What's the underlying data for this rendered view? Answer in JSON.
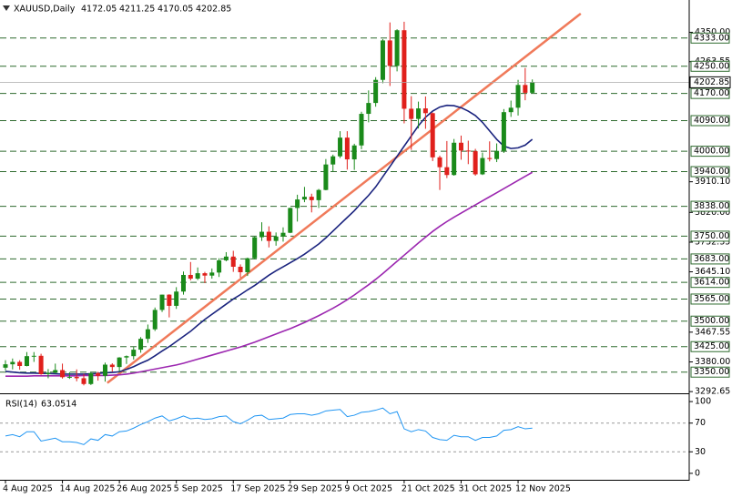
{
  "header": {
    "symbol": "XAUUSD,Daily"
  },
  "chart_data": {
    "type": "candlestick",
    "categories": [
      "4 Aug 2025",
      null,
      null,
      null,
      null,
      null,
      null,
      null,
      "14 Aug 2025",
      null,
      null,
      null,
      null,
      null,
      null,
      null,
      "26 Aug 2025",
      null,
      null,
      null,
      null,
      null,
      null,
      null,
      "5 Sep 2025",
      null,
      null,
      null,
      null,
      null,
      null,
      null,
      "17 Sep 2025",
      null,
      null,
      null,
      null,
      null,
      null,
      null,
      "29 Sep 2025",
      null,
      null,
      null,
      null,
      null,
      null,
      null,
      "9 Oct 2025",
      null,
      null,
      null,
      null,
      null,
      null,
      null,
      "21 Oct 2025",
      null,
      null,
      null,
      null,
      null,
      null,
      null,
      "31 Oct 2025",
      null,
      null,
      null,
      null,
      null,
      null,
      null,
      "12 Nov 2025",
      null,
      null
    ],
    "candles": [
      [
        3363,
        3385,
        3355,
        3373
      ],
      [
        3373,
        3390,
        3358,
        3380
      ],
      [
        3380,
        3385,
        3357,
        3368
      ],
      [
        3368,
        3409,
        3367,
        3397
      ],
      [
        3397,
        3409,
        3380,
        3398
      ],
      [
        3398,
        3404,
        3342,
        3344
      ],
      [
        3344,
        3359,
        3332,
        3348
      ],
      [
        3348,
        3375,
        3346,
        3356
      ],
      [
        3356,
        3375,
        3331,
        3335
      ],
      [
        3335,
        3350,
        3330,
        3336
      ],
      [
        3336,
        3358,
        3323,
        3332
      ],
      [
        3332,
        3345,
        3311,
        3315
      ],
      [
        3315,
        3350,
        3312,
        3347
      ],
      [
        3347,
        3351,
        3325,
        3339
      ],
      [
        3339,
        3378,
        3322,
        3372
      ],
      [
        3372,
        3376,
        3351,
        3365
      ],
      [
        3365,
        3394,
        3351,
        3393
      ],
      [
        3393,
        3399,
        3374,
        3397
      ],
      [
        3397,
        3424,
        3387,
        3416
      ],
      [
        3416,
        3453,
        3407,
        3448
      ],
      [
        3448,
        3490,
        3436,
        3476
      ],
      [
        3476,
        3540,
        3471,
        3533
      ],
      [
        3533,
        3578,
        3527,
        3578
      ],
      [
        3578,
        3579,
        3511,
        3545
      ],
      [
        3545,
        3600,
        3536,
        3587
      ],
      [
        3587,
        3646,
        3578,
        3636
      ],
      [
        3636,
        3674,
        3620,
        3625
      ],
      [
        3625,
        3658,
        3621,
        3641
      ],
      [
        3641,
        3645,
        3612,
        3634
      ],
      [
        3634,
        3655,
        3625,
        3643
      ],
      [
        3643,
        3685,
        3630,
        3679
      ],
      [
        3679,
        3703,
        3676,
        3690
      ],
      [
        3690,
        3707,
        3645,
        3660
      ],
      [
        3660,
        3667,
        3628,
        3644
      ],
      [
        3644,
        3687,
        3633,
        3685
      ],
      [
        3685,
        3749,
        3682,
        3747
      ],
      [
        3747,
        3791,
        3736,
        3763
      ],
      [
        3763,
        3779,
        3717,
        3736
      ],
      [
        3736,
        3761,
        3722,
        3749
      ],
      [
        3749,
        3776,
        3734,
        3760
      ],
      [
        3760,
        3834,
        3759,
        3833
      ],
      [
        3833,
        3872,
        3793,
        3858
      ],
      [
        3858,
        3895,
        3850,
        3866
      ],
      [
        3866,
        3875,
        3820,
        3856
      ],
      [
        3856,
        3889,
        3833,
        3886
      ],
      [
        3886,
        3977,
        3885,
        3961
      ],
      [
        3961,
        3990,
        3940,
        3985
      ],
      [
        3985,
        4059,
        3980,
        4040
      ],
      [
        4040,
        4059,
        3946,
        3976
      ],
      [
        3976,
        4022,
        3945,
        4017
      ],
      [
        4017,
        4116,
        4006,
        4110
      ],
      [
        4110,
        4179,
        4085,
        4142
      ],
      [
        4142,
        4218,
        4131,
        4210
      ],
      [
        4210,
        4330,
        4200,
        4326
      ],
      [
        4326,
        4379,
        4192,
        4251
      ],
      [
        4251,
        4359,
        4235,
        4356
      ],
      [
        4356,
        4381,
        4082,
        4125
      ],
      [
        4125,
        4162,
        4004,
        4095
      ],
      [
        4095,
        4146,
        4067,
        4126
      ],
      [
        4126,
        4161,
        4066,
        4112
      ],
      [
        4112,
        4114,
        3971,
        3982
      ],
      [
        3982,
        3987,
        3886,
        3953
      ],
      [
        3953,
        4030,
        3921,
        3930
      ],
      [
        3930,
        4036,
        3928,
        4025
      ],
      [
        4025,
        4046,
        3975,
        4002
      ],
      [
        4002,
        4031,
        3962,
        4000
      ],
      [
        4000,
        4007,
        3928,
        3932
      ],
      [
        3932,
        3996,
        3930,
        3980
      ],
      [
        3980,
        4029,
        3970,
        3977
      ],
      [
        3977,
        4023,
        3968,
        4001
      ],
      [
        4001,
        4124,
        3995,
        4115
      ],
      [
        4115,
        4149,
        4101,
        4128
      ],
      [
        4128,
        4210,
        4105,
        4195
      ],
      [
        4195,
        4245,
        4150,
        4172
      ],
      [
        4172.05,
        4211.25,
        4170.05,
        4202.85
      ]
    ],
    "up_color": "#1a8a1a",
    "down_color": "#e0201c",
    "moving_averages": [
      {
        "color": "#1a237e",
        "values": [
          3352,
          3350,
          3348,
          3347,
          3347,
          3346,
          3346,
          3345,
          3344,
          3344,
          3344,
          3344,
          3345,
          3346,
          3348,
          3349,
          3351,
          3358,
          3366,
          3376,
          3385,
          3398,
          3412,
          3425,
          3440,
          3455,
          3470,
          3488,
          3505,
          3520,
          3535,
          3550,
          3565,
          3578,
          3592,
          3605,
          3620,
          3635,
          3648,
          3660,
          3672,
          3684,
          3697,
          3712,
          3727,
          3745,
          3765,
          3785,
          3805,
          3825,
          3848,
          3870,
          3895,
          3925,
          3955,
          3985,
          4015,
          4045,
          4075,
          4100,
          4118,
          4130,
          4135,
          4134,
          4128,
          4118,
          4105,
          4085,
          4060,
          4035,
          4015,
          4008,
          4010,
          4018,
          4035
        ]
      },
      {
        "color": "#9c27b0",
        "values": [
          3338,
          3338,
          3338,
          3338,
          3339,
          3339,
          3339,
          3339,
          3339,
          3339,
          3339,
          3340,
          3340,
          3340,
          3340,
          3341,
          3342,
          3344,
          3347,
          3351,
          3355,
          3359,
          3363,
          3367,
          3371,
          3376,
          3382,
          3388,
          3394,
          3400,
          3406,
          3412,
          3418,
          3424,
          3431,
          3438,
          3446,
          3454,
          3462,
          3470,
          3478,
          3487,
          3496,
          3506,
          3516,
          3527,
          3538,
          3550,
          3563,
          3577,
          3592,
          3607,
          3623,
          3640,
          3658,
          3676,
          3694,
          3712,
          3730,
          3747,
          3764,
          3779,
          3793,
          3806,
          3818,
          3830,
          3842,
          3854,
          3866,
          3878,
          3890,
          3902,
          3914,
          3926,
          3938
        ]
      }
    ],
    "trendline": {
      "color": "#f07a5a",
      "x": [
        14.3,
        80.8
      ],
      "y": [
        3318,
        4405
      ]
    },
    "ylim": [
      3293,
      4445
    ],
    "yticks": [
      {
        "value": 4350,
        "label": "4350.00"
      },
      {
        "value": 4263.55,
        "label": "4263.55"
      },
      {
        "value": 3910.1,
        "label": "3910.10"
      },
      {
        "value": 3820,
        "label": "3820.00"
      },
      {
        "value": 3732.35,
        "label": "3732.35"
      },
      {
        "value": 3645.1,
        "label": "3645.10"
      },
      {
        "value": 3467.55,
        "label": "3467.55"
      },
      {
        "value": 3380,
        "label": "3380.00"
      },
      {
        "value": 3292.65,
        "label": "3292.65"
      }
    ],
    "level_color": "#2f6b2f",
    "levels": [
      {
        "value": 4333,
        "label": "4333.00"
      },
      {
        "value": 4250,
        "label": "4250.00"
      },
      {
        "value": 4170,
        "label": "4170.00"
      },
      {
        "value": 4090,
        "label": "4090.00"
      },
      {
        "value": 4000,
        "label": "4000.00"
      },
      {
        "value": 3940,
        "label": "3940.00"
      },
      {
        "value": 3838,
        "label": "3838.00"
      },
      {
        "value": 3750,
        "label": "3750.00"
      },
      {
        "value": 3683,
        "label": "3683.00"
      },
      {
        "value": 3614,
        "label": "3614.00"
      },
      {
        "value": 3565,
        "label": "3565.00"
      },
      {
        "value": 3500,
        "label": "3500.00"
      },
      {
        "value": 3425,
        "label": "3425.00"
      },
      {
        "value": 3350,
        "label": "3350.00"
      }
    ],
    "rsi": {
      "title": "RSI(14)",
      "color": "#2196f3",
      "ylim": [
        -9,
        109
      ],
      "yticks": [
        100,
        70,
        30,
        0
      ],
      "levels": [
        70,
        30
      ],
      "values": [
        52,
        54,
        51,
        58,
        58,
        45,
        47,
        49,
        44,
        44,
        43,
        40,
        48,
        46,
        54,
        52,
        58,
        59,
        63,
        68,
        72,
        77,
        80,
        73,
        76,
        80,
        76,
        77,
        75,
        76,
        79,
        80,
        72,
        69,
        74,
        80,
        81,
        75,
        76,
        77,
        82,
        83,
        83,
        81,
        83,
        87,
        88,
        89,
        79,
        81,
        85,
        86,
        88,
        91,
        83,
        86,
        62,
        58,
        61,
        59,
        50,
        47,
        46,
        53,
        51,
        51,
        46,
        50,
        50,
        52,
        60,
        61,
        65,
        62,
        63.0514
      ]
    }
  }
}
